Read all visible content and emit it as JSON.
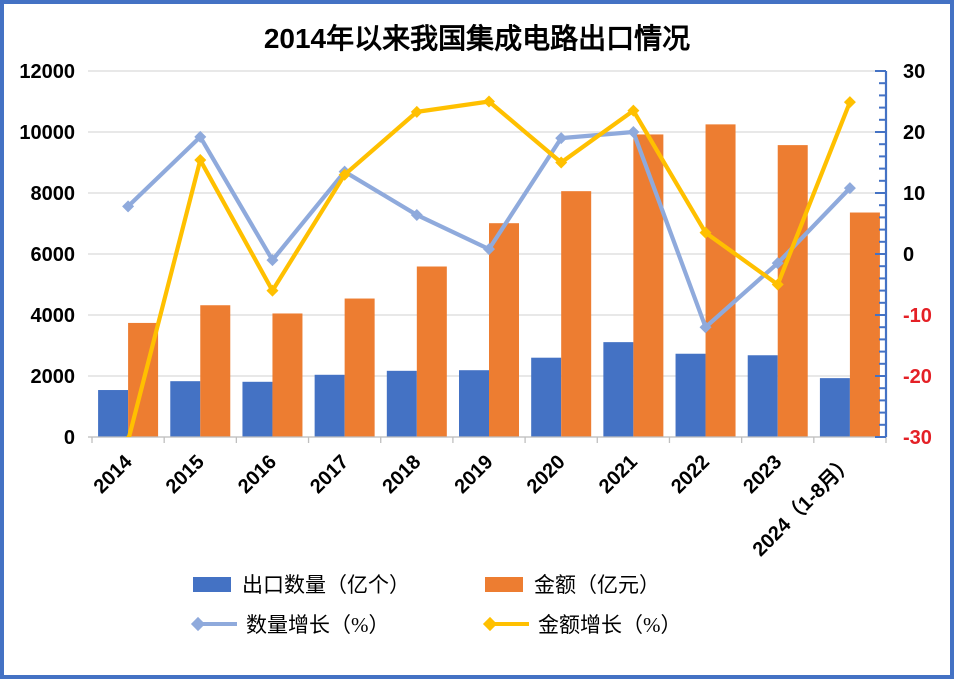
{
  "title": "2014年以来我国集成电路出口情况",
  "frame_color": "#4472C4",
  "chart_data": {
    "type": "combo_bar_line",
    "title": "2014年以来我国集成电路出口情况",
    "categories": [
      "2014",
      "2015",
      "2016",
      "2017",
      "2018",
      "2019",
      "2020",
      "2021",
      "2022",
      "2023",
      "2024（1-8月）"
    ],
    "series": [
      {
        "key": "export-quantity",
        "name": "出口数量（亿个）",
        "type": "bar",
        "axis": "left",
        "color": "#4472C4",
        "values": [
          1540,
          1830,
          1810,
          2040,
          2170,
          2190,
          2600,
          3110,
          2730,
          2680,
          1930
        ]
      },
      {
        "key": "export-amount",
        "name": "金额（亿元）",
        "type": "bar",
        "axis": "left",
        "color": "#ED7D31",
        "values": [
          3740,
          4320,
          4050,
          4540,
          5590,
          7010,
          8060,
          9920,
          10250,
          9570,
          7360
        ]
      },
      {
        "key": "quantity-growth",
        "name": "数量增长（%）",
        "type": "line",
        "axis": "right",
        "color": "#8FAADC",
        "values": [
          7.8,
          19.2,
          -1,
          13.5,
          6.4,
          0.8,
          19,
          20,
          -12,
          -1.5,
          10.8
        ]
      },
      {
        "key": "amount-growth",
        "name": "金额增长（%）",
        "type": "line",
        "axis": "right",
        "color": "#FFC000",
        "values": [
          -30.6,
          15.4,
          -6,
          13,
          23.3,
          25,
          15,
          23.5,
          3.5,
          -5,
          24.9
        ]
      }
    ],
    "left_axis": {
      "min": 0,
      "max": 12000,
      "step": 2000,
      "label_color": "#000000"
    },
    "right_axis": {
      "min": -30,
      "max": 30,
      "step": 10,
      "minor_step": 2,
      "positive_label_color": "#000000",
      "negative_label_color": "#E42026",
      "axis_color": "#4472C4"
    },
    "gridline_color": "#D9D9D9",
    "x_axis_color": "#BFBFBF",
    "grid": "horizontal",
    "legend_position": "bottom"
  }
}
